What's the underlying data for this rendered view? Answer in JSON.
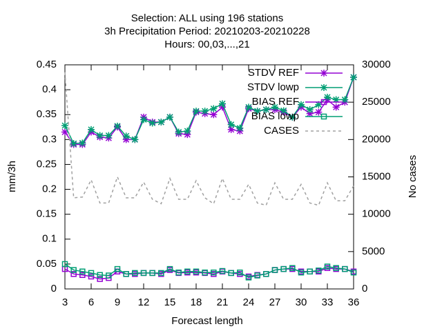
{
  "chart_data": {
    "type": "line",
    "title_lines": [
      "Selection: ALL using   196 stations",
      "3h Precipitation   Period: 20210203-20210228",
      "Hours:  00,03,...,21"
    ],
    "xlabel": "Forecast length",
    "ylabel": "mm/3h",
    "y2label": "No cases",
    "x": [
      3,
      4,
      5,
      6,
      7,
      8,
      9,
      10,
      11,
      12,
      13,
      14,
      15,
      16,
      17,
      18,
      19,
      20,
      21,
      22,
      23,
      24,
      25,
      26,
      27,
      28,
      29,
      30,
      31,
      32,
      33,
      34,
      35,
      36
    ],
    "xlim": [
      3,
      36
    ],
    "xticks": [
      3,
      6,
      9,
      12,
      15,
      18,
      21,
      24,
      27,
      30,
      33,
      36
    ],
    "ylim": [
      0,
      0.45
    ],
    "yticks": [
      0,
      0.05,
      0.1,
      0.15,
      0.2,
      0.25,
      0.3,
      0.35,
      0.4,
      0.45
    ],
    "y2lim": [
      0,
      30000
    ],
    "y2ticks": [
      0,
      5000,
      10000,
      15000,
      20000,
      25000,
      30000
    ],
    "legend": "upper right",
    "series": [
      {
        "name": "STDV REF",
        "color": "#9400d3",
        "marker": "star",
        "dash": false,
        "values": [
          0.315,
          0.29,
          0.29,
          0.315,
          0.305,
          0.303,
          0.325,
          0.3,
          0.3,
          0.345,
          0.335,
          0.335,
          0.345,
          0.312,
          0.31,
          0.355,
          0.352,
          0.35,
          0.365,
          0.32,
          0.317,
          0.362,
          0.357,
          0.36,
          0.36,
          0.355,
          0.345,
          0.365,
          0.352,
          0.355,
          0.38,
          0.365,
          0.375,
          0.425
        ]
      },
      {
        "name": "STDV lowp",
        "color": "#009e73",
        "marker": "star",
        "dash": false,
        "values": [
          0.328,
          0.292,
          0.293,
          0.32,
          0.308,
          0.308,
          0.327,
          0.307,
          0.3,
          0.34,
          0.333,
          0.335,
          0.345,
          0.315,
          0.317,
          0.357,
          0.357,
          0.362,
          0.372,
          0.33,
          0.323,
          0.365,
          0.357,
          0.36,
          0.365,
          0.358,
          0.345,
          0.37,
          0.36,
          0.37,
          0.385,
          0.38,
          0.38,
          0.425
        ]
      },
      {
        "name": "BIAS REF",
        "color": "#9400d3",
        "marker": "square",
        "dash": false,
        "values": [
          0.04,
          0.03,
          0.028,
          0.025,
          0.02,
          0.022,
          0.035,
          0.03,
          0.03,
          0.032,
          0.032,
          0.03,
          0.038,
          0.032,
          0.033,
          0.033,
          0.032,
          0.03,
          0.035,
          0.032,
          0.03,
          0.025,
          0.028,
          0.03,
          0.038,
          0.04,
          0.04,
          0.035,
          0.035,
          0.035,
          0.042,
          0.04,
          0.04,
          0.035
        ]
      },
      {
        "name": "BIAS lowp",
        "color": "#009e73",
        "marker": "square",
        "dash": false,
        "values": [
          0.05,
          0.038,
          0.035,
          0.032,
          0.028,
          0.027,
          0.04,
          0.03,
          0.032,
          0.032,
          0.032,
          0.032,
          0.04,
          0.033,
          0.035,
          0.035,
          0.033,
          0.033,
          0.036,
          0.032,
          0.033,
          0.023,
          0.027,
          0.03,
          0.038,
          0.04,
          0.042,
          0.033,
          0.035,
          0.037,
          0.045,
          0.042,
          0.04,
          0.033
        ]
      },
      {
        "name": "CASES",
        "color": "#a0a0a0",
        "marker": "none",
        "dash": true,
        "axis": "y2",
        "values": [
          29000,
          12200,
          12300,
          14600,
          11500,
          11500,
          15000,
          12200,
          12200,
          14300,
          12000,
          11400,
          14800,
          12000,
          12000,
          14500,
          12200,
          11400,
          14800,
          12000,
          12000,
          14000,
          11500,
          11200,
          14200,
          12000,
          12000,
          14000,
          11500,
          11200,
          14200,
          11800,
          11800,
          13800
        ]
      }
    ]
  }
}
